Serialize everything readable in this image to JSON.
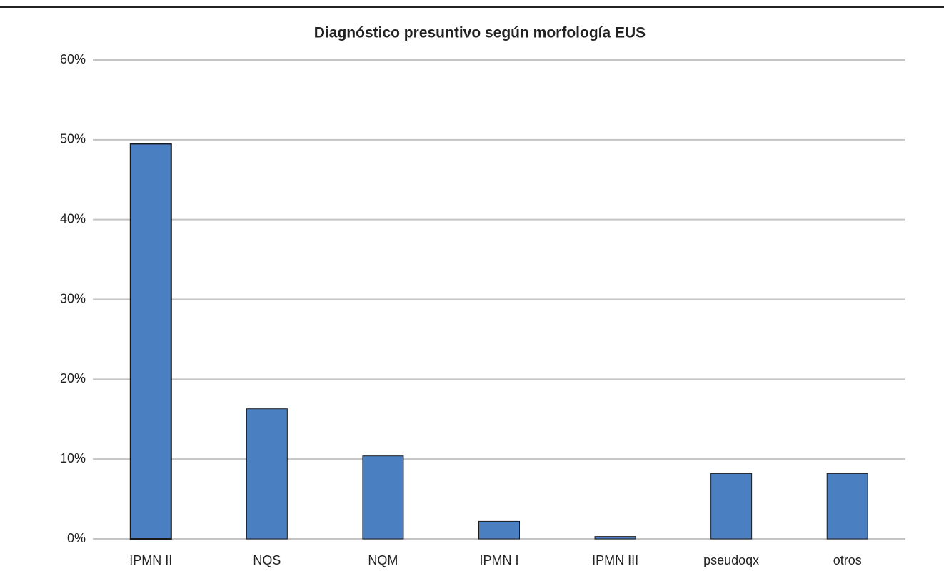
{
  "chart_data": {
    "type": "bar",
    "title": "Diagnóstico presuntivo según morfología EUS",
    "categories": [
      "IPMN II",
      "NQS",
      "NQM",
      "IPMN I",
      "IPMN III",
      "pseudoqx",
      "otros"
    ],
    "values": [
      49.5,
      16.3,
      10.4,
      2.2,
      0.3,
      8.2,
      8.2
    ],
    "color": "#4a80c2",
    "ylim": [
      0,
      60
    ],
    "yticks": [
      {
        "value": 0,
        "label": "0%"
      },
      {
        "value": 10,
        "label": "10%"
      },
      {
        "value": 20,
        "label": "20%"
      },
      {
        "value": 30,
        "label": "30%"
      },
      {
        "value": 40,
        "label": "40%"
      },
      {
        "value": 50,
        "label": "50%"
      },
      {
        "value": 60,
        "label": "60%"
      }
    ],
    "grid": true
  }
}
